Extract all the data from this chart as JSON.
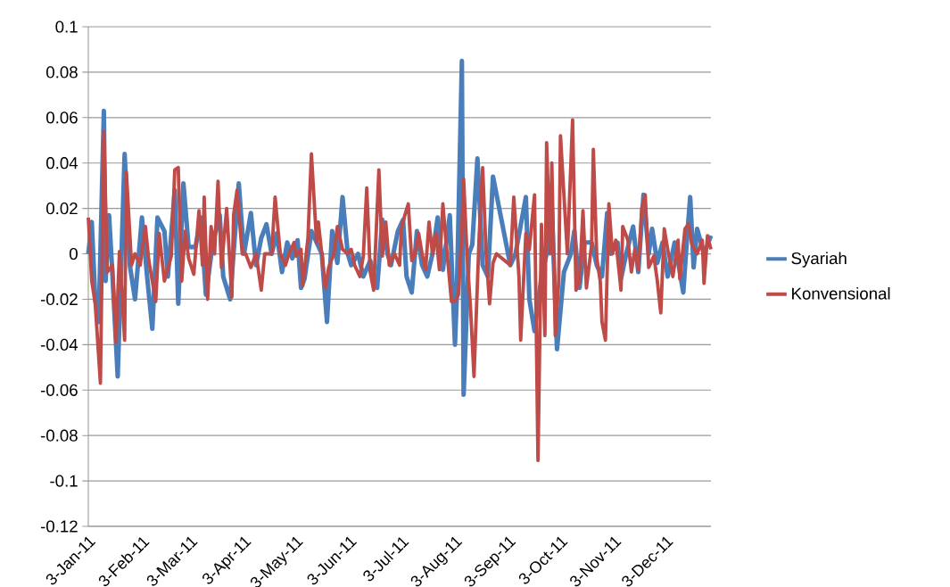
{
  "chart_data": {
    "type": "line",
    "xlim": [
      "2011-01-03",
      "2011-12-29"
    ],
    "ylim": [
      -0.12,
      0.1
    ],
    "xticks": [
      {
        "value": "2011-01-03",
        "label": "3-Jan-11"
      },
      {
        "value": "2011-02-03",
        "label": "3-Feb-11"
      },
      {
        "value": "2011-03-03",
        "label": "3-Mar-11"
      },
      {
        "value": "2011-04-03",
        "label": "3-Apr-11"
      },
      {
        "value": "2011-05-03",
        "label": "3-May-11"
      },
      {
        "value": "2011-06-03",
        "label": "3-Jun-11"
      },
      {
        "value": "2011-07-03",
        "label": "3-Jul-11"
      },
      {
        "value": "2011-08-03",
        "label": "3-Aug-11"
      },
      {
        "value": "2011-09-03",
        "label": "3-Sep-11"
      },
      {
        "value": "2011-10-03",
        "label": "3-Oct-11"
      },
      {
        "value": "2011-11-03",
        "label": "3-Nov-11"
      },
      {
        "value": "2011-12-03",
        "label": "3-Dec-11"
      }
    ],
    "yticks": [
      0.1,
      0.08,
      0.06,
      0.04,
      0.02,
      0,
      -0.02,
      -0.04,
      -0.06,
      -0.08,
      -0.1,
      -0.12
    ],
    "grid": "y",
    "legend": "right",
    "series": [
      {
        "name": "Syariah",
        "color": "#4a7ebb",
        "x": [
          "2011-01-03",
          "2011-01-05",
          "2011-01-07",
          "2011-01-09",
          "2011-01-12",
          "2011-01-13",
          "2011-01-15",
          "2011-01-17",
          "2011-01-20",
          "2011-01-24",
          "2011-01-27",
          "2011-01-30",
          "2011-02-03",
          "2011-02-06",
          "2011-02-09",
          "2011-02-12",
          "2011-02-16",
          "2011-02-18",
          "2011-02-22",
          "2011-02-24",
          "2011-02-27",
          "2011-03-02",
          "2011-03-06",
          "2011-03-09",
          "2011-03-12",
          "2011-03-16",
          "2011-03-20",
          "2011-03-22",
          "2011-03-26",
          "2011-03-31",
          "2011-04-03",
          "2011-04-07",
          "2011-04-10",
          "2011-04-13",
          "2011-04-16",
          "2011-04-19",
          "2011-04-22",
          "2011-04-25",
          "2011-04-28",
          "2011-05-01",
          "2011-05-04",
          "2011-05-06",
          "2011-05-08",
          "2011-05-12",
          "2011-05-15",
          "2011-05-18",
          "2011-05-21",
          "2011-05-24",
          "2011-05-27",
          "2011-05-30",
          "2011-06-02",
          "2011-06-04",
          "2011-06-08",
          "2011-06-11",
          "2011-06-15",
          "2011-06-19",
          "2011-06-22",
          "2011-06-25",
          "2011-06-27",
          "2011-07-01",
          "2011-07-04",
          "2011-07-06",
          "2011-07-09",
          "2011-07-12",
          "2011-07-15",
          "2011-07-18",
          "2011-07-21",
          "2011-07-24",
          "2011-07-27",
          "2011-07-31",
          "2011-08-03",
          "2011-08-04",
          "2011-08-07",
          "2011-08-08",
          "2011-08-11",
          "2011-08-13",
          "2011-08-16",
          "2011-08-19",
          "2011-08-22",
          "2011-08-25",
          "2011-09-04",
          "2011-09-07",
          "2011-09-13",
          "2011-09-15",
          "2011-09-18",
          "2011-09-22",
          "2011-09-25",
          "2011-09-28",
          "2011-10-01",
          "2011-10-05",
          "2011-10-09",
          "2011-10-11",
          "2011-10-14",
          "2011-10-17",
          "2011-10-21",
          "2011-10-24",
          "2011-10-27",
          "2011-10-30",
          "2011-11-01",
          "2011-11-05",
          "2011-11-07",
          "2011-11-10",
          "2011-11-14",
          "2011-11-17",
          "2011-11-20",
          "2011-11-23",
          "2011-11-25",
          "2011-11-28",
          "2011-12-01",
          "2011-12-04",
          "2011-12-08",
          "2011-12-11",
          "2011-12-13",
          "2011-12-15",
          "2011-12-17",
          "2011-12-19",
          "2011-12-21",
          "2011-12-25",
          "2011-12-29"
        ],
        "values": [
          0.0,
          0.014,
          -0.02,
          -0.03,
          0.063,
          -0.012,
          0.017,
          -0.01,
          -0.054,
          0.044,
          -0.005,
          -0.02,
          0.016,
          -0.01,
          -0.033,
          0.016,
          0.01,
          -0.01,
          0.028,
          -0.022,
          0.031,
          0.003,
          0.003,
          0.016,
          -0.018,
          0.005,
          0.017,
          -0.01,
          -0.02,
          0.031,
          0.0,
          0.018,
          -0.005,
          0.007,
          0.013,
          0.0,
          0.009,
          -0.008,
          0.005,
          -0.002,
          0.006,
          -0.015,
          -0.011,
          0.01,
          0.005,
          0.0,
          -0.03,
          0.01,
          -0.004,
          0.025,
          0.0,
          -0.005,
          0.0,
          -0.01,
          -0.003,
          -0.015,
          0.015,
          0.0,
          -0.005,
          0.01,
          0.015,
          -0.01,
          -0.017,
          0.01,
          -0.005,
          -0.01,
          0.0,
          0.016,
          -0.007,
          0.017,
          -0.04,
          -0.02,
          0.085,
          -0.062,
          0.0,
          0.004,
          0.042,
          -0.005,
          -0.01,
          0.034,
          -0.005,
          0.0,
          0.025,
          -0.02,
          -0.034,
          -0.01,
          0.0,
          0.02,
          -0.042,
          -0.008,
          0.0,
          0.01,
          -0.015,
          0.005,
          0.005,
          -0.005,
          -0.01,
          0.018,
          0.0,
          0.005,
          -0.011,
          0.0,
          0.012,
          -0.008,
          0.026,
          0.0,
          0.011,
          -0.004,
          0.005,
          -0.01,
          0.005,
          -0.008,
          -0.017,
          0.005,
          0.025,
          -0.006,
          0.011,
          0.0,
          0.008
        ]
      },
      {
        "name": "Konvensional",
        "color": "#be4b48",
        "x": [
          "2011-01-03",
          "2011-01-05",
          "2011-01-07",
          "2011-01-10",
          "2011-01-12",
          "2011-01-14",
          "2011-01-17",
          "2011-01-19",
          "2011-01-21",
          "2011-01-24",
          "2011-01-25",
          "2011-01-28",
          "2011-01-30",
          "2011-02-02",
          "2011-02-05",
          "2011-02-07",
          "2011-02-11",
          "2011-02-13",
          "2011-02-16",
          "2011-02-20",
          "2011-02-22",
          "2011-02-24",
          "2011-02-26",
          "2011-02-28",
          "2011-03-02",
          "2011-03-05",
          "2011-03-08",
          "2011-03-10",
          "2011-03-11",
          "2011-03-13",
          "2011-03-15",
          "2011-03-17",
          "2011-03-19",
          "2011-03-21",
          "2011-03-24",
          "2011-03-27",
          "2011-03-28",
          "2011-03-30",
          "2011-04-02",
          "2011-04-04",
          "2011-04-07",
          "2011-04-10",
          "2011-04-13",
          "2011-04-15",
          "2011-04-19",
          "2011-04-21",
          "2011-04-24",
          "2011-04-27",
          "2011-04-29",
          "2011-05-02",
          "2011-05-03",
          "2011-05-06",
          "2011-05-07",
          "2011-05-10",
          "2011-05-12",
          "2011-05-15",
          "2011-05-16",
          "2011-05-18",
          "2011-05-20",
          "2011-05-22",
          "2011-05-25",
          "2011-05-27",
          "2011-05-30",
          "2011-06-02",
          "2011-06-04",
          "2011-06-06",
          "2011-06-09",
          "2011-06-11",
          "2011-06-13",
          "2011-06-15",
          "2011-06-17",
          "2011-06-20",
          "2011-06-22",
          "2011-06-24",
          "2011-06-26",
          "2011-06-29",
          "2011-07-02",
          "2011-07-03",
          "2011-07-05",
          "2011-07-07",
          "2011-07-09",
          "2011-07-11",
          "2011-07-13",
          "2011-07-15",
          "2011-07-17",
          "2011-07-19",
          "2011-07-21",
          "2011-07-23",
          "2011-07-25",
          "2011-07-27",
          "2011-07-29",
          "2011-08-01",
          "2011-08-03",
          "2011-08-05",
          "2011-08-07",
          "2011-08-08",
          "2011-08-10",
          "2011-08-12",
          "2011-08-14",
          "2011-08-17",
          "2011-08-19",
          "2011-08-21",
          "2011-08-23",
          "2011-08-25",
          "2011-08-27",
          "2011-09-04",
          "2011-09-06",
          "2011-09-09",
          "2011-09-10",
          "2011-09-13",
          "2011-09-15",
          "2011-09-18",
          "2011-09-20",
          "2011-09-22",
          "2011-09-24",
          "2011-09-25",
          "2011-09-27",
          "2011-09-28",
          "2011-09-30",
          "2011-10-02",
          "2011-10-03",
          "2011-10-07",
          "2011-10-10",
          "2011-10-12",
          "2011-10-14",
          "2011-10-16",
          "2011-10-18",
          "2011-10-21",
          "2011-10-22",
          "2011-10-24",
          "2011-10-26",
          "2011-10-27",
          "2011-10-29",
          "2011-10-31",
          "2011-11-02",
          "2011-11-04",
          "2011-11-07",
          "2011-11-08",
          "2011-11-11",
          "2011-11-13",
          "2011-11-15",
          "2011-11-17",
          "2011-11-19",
          "2011-11-21",
          "2011-11-23",
          "2011-11-26",
          "2011-11-28",
          "2011-11-30",
          "2011-12-02",
          "2011-12-04",
          "2011-12-07",
          "2011-12-10",
          "2011-12-11",
          "2011-12-14",
          "2011-12-16",
          "2011-12-18",
          "2011-12-21",
          "2011-12-24",
          "2011-12-25",
          "2011-12-27",
          "2011-12-29"
        ],
        "values": [
          0.016,
          -0.012,
          -0.022,
          -0.057,
          0.054,
          -0.008,
          -0.005,
          -0.039,
          0.001,
          -0.038,
          0.036,
          -0.005,
          0.0,
          -0.005,
          0.012,
          -0.003,
          -0.021,
          0.009,
          -0.012,
          -0.001,
          0.037,
          0.038,
          -0.012,
          0.01,
          -0.002,
          -0.009,
          0.019,
          -0.005,
          0.025,
          -0.02,
          0.012,
          0.0,
          0.032,
          -0.006,
          0.02,
          -0.019,
          0.017,
          0.028,
          0.0,
          0.0,
          -0.006,
          0.0,
          -0.016,
          0.0,
          0.0,
          0.025,
          0.0,
          -0.005,
          0.0,
          0.005,
          -0.001,
          0.002,
          -0.014,
          0.007,
          0.044,
          0.005,
          0.014,
          0.0,
          -0.015,
          -0.006,
          0.0,
          0.012,
          0.002,
          0.0,
          0.002,
          -0.005,
          -0.01,
          -0.001,
          0.029,
          -0.008,
          -0.016,
          0.037,
          -0.001,
          0.014,
          -0.005,
          0.0,
          -0.005,
          0.011,
          0.017,
          0.022,
          -0.003,
          0.0,
          0.009,
          0.0,
          -0.007,
          0.014,
          0.0,
          0.009,
          -0.007,
          0.022,
          0.004,
          -0.021,
          -0.021,
          -0.018,
          0.01,
          0.033,
          -0.001,
          -0.024,
          -0.054,
          0.008,
          0.038,
          0.0,
          -0.022,
          -0.004,
          0.0,
          -0.005,
          0.025,
          -0.01,
          -0.038,
          0.009,
          0.002,
          0.026,
          -0.091,
          0.013,
          -0.036,
          0.049,
          0.0,
          0.04,
          -0.036,
          -0.012,
          0.052,
          0.0,
          0.059,
          -0.016,
          -0.012,
          0.019,
          -0.015,
          0.004,
          0.046,
          -0.002,
          -0.012,
          -0.03,
          -0.038,
          0.022,
          0.0,
          0.006,
          -0.016,
          0.012,
          0.006,
          -0.008,
          0.002,
          -0.007,
          0.02,
          0.026,
          -0.006,
          -0.001,
          -0.012,
          -0.026,
          0.011,
          0.002,
          -0.01,
          0.006,
          -0.011,
          0.011,
          0.013,
          0.004,
          0.0,
          0.006,
          -0.013,
          0.008,
          0.002
        ]
      }
    ]
  }
}
